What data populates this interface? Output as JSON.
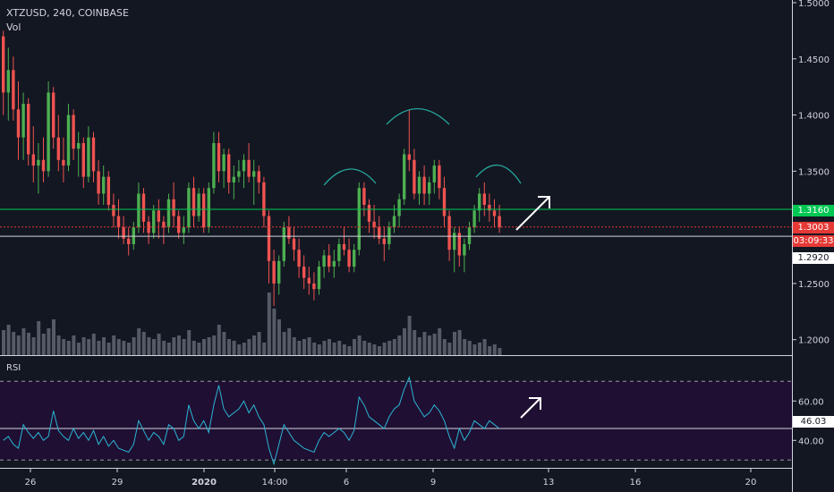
{
  "header": {
    "symbol_line": "XTZUSD, 240, COINBASE",
    "volume_label": "Vol"
  },
  "rsi_label": "RSI",
  "price_axis": {
    "ticks": [
      "1.5000",
      "1.4500",
      "1.4000",
      "1.3500",
      "1.2500",
      "1.2000"
    ]
  },
  "rsi_axis": {
    "ticks": [
      "60.00",
      "40.00"
    ]
  },
  "time_axis": {
    "ticks": [
      "26",
      "29",
      "2020",
      "14:00",
      "6",
      "9",
      "13",
      "16",
      "20"
    ]
  },
  "price_tags": {
    "green_line": "1.3160",
    "last_price": "1.3003",
    "countdown": "03:09:33",
    "gray_line": "1.2920",
    "rsi_value": "46.03"
  },
  "colors": {
    "background": "#131722",
    "up": "#26a69a",
    "up_candle": "#4caf50",
    "down_candle": "#ef5350",
    "green_line": "#00c853",
    "last_price": "#e53935",
    "rsi_line": "#2bb5d4",
    "rsi_band": "#1f0f33",
    "volume": "#555a66"
  },
  "chart_data": {
    "type": "candlestick",
    "candles": [
      [
        1.47,
        1.475,
        1.4,
        1.42
      ],
      [
        1.42,
        1.46,
        1.395,
        1.44
      ],
      [
        1.44,
        1.452,
        1.395,
        1.405
      ],
      [
        1.405,
        1.43,
        1.36,
        1.38
      ],
      [
        1.38,
        1.42,
        1.36,
        1.41
      ],
      [
        1.41,
        1.415,
        1.355,
        1.365
      ],
      [
        1.365,
        1.39,
        1.34,
        1.355
      ],
      [
        1.355,
        1.375,
        1.33,
        1.36
      ],
      [
        1.36,
        1.38,
        1.34,
        1.35
      ],
      [
        1.35,
        1.43,
        1.345,
        1.42
      ],
      [
        1.42,
        1.425,
        1.37,
        1.38
      ],
      [
        1.38,
        1.4,
        1.35,
        1.36
      ],
      [
        1.36,
        1.38,
        1.34,
        1.355
      ],
      [
        1.355,
        1.41,
        1.35,
        1.4
      ],
      [
        1.4,
        1.405,
        1.36,
        1.37
      ],
      [
        1.37,
        1.385,
        1.345,
        1.375
      ],
      [
        1.375,
        1.38,
        1.335,
        1.345
      ],
      [
        1.345,
        1.39,
        1.34,
        1.38
      ],
      [
        1.38,
        1.385,
        1.34,
        1.35
      ],
      [
        1.35,
        1.36,
        1.32,
        1.33
      ],
      [
        1.33,
        1.355,
        1.32,
        1.345
      ],
      [
        1.345,
        1.35,
        1.315,
        1.32
      ],
      [
        1.32,
        1.33,
        1.3,
        1.31
      ],
      [
        1.31,
        1.325,
        1.29,
        1.3
      ],
      [
        1.3,
        1.31,
        1.285,
        1.29
      ],
      [
        1.29,
        1.3,
        1.275,
        1.285
      ],
      [
        1.285,
        1.305,
        1.28,
        1.3
      ],
      [
        1.3,
        1.34,
        1.295,
        1.33
      ],
      [
        1.33,
        1.335,
        1.295,
        1.305
      ],
      [
        1.305,
        1.31,
        1.285,
        1.295
      ],
      [
        1.295,
        1.32,
        1.29,
        1.315
      ],
      [
        1.315,
        1.325,
        1.29,
        1.305
      ],
      [
        1.305,
        1.31,
        1.285,
        1.3
      ],
      [
        1.3,
        1.33,
        1.295,
        1.325
      ],
      [
        1.325,
        1.34,
        1.3,
        1.31
      ],
      [
        1.31,
        1.315,
        1.29,
        1.295
      ],
      [
        1.295,
        1.31,
        1.285,
        1.3
      ],
      [
        1.3,
        1.34,
        1.295,
        1.335
      ],
      [
        1.335,
        1.345,
        1.3,
        1.31
      ],
      [
        1.31,
        1.335,
        1.305,
        1.33
      ],
      [
        1.33,
        1.335,
        1.295,
        1.3
      ],
      [
        1.3,
        1.34,
        1.295,
        1.335
      ],
      [
        1.335,
        1.385,
        1.33,
        1.375
      ],
      [
        1.375,
        1.385,
        1.34,
        1.35
      ],
      [
        1.35,
        1.37,
        1.335,
        1.365
      ],
      [
        1.365,
        1.37,
        1.33,
        1.34
      ],
      [
        1.34,
        1.355,
        1.325,
        1.345
      ],
      [
        1.345,
        1.36,
        1.34,
        1.35
      ],
      [
        1.35,
        1.365,
        1.335,
        1.36
      ],
      [
        1.36,
        1.375,
        1.34,
        1.345
      ],
      [
        1.345,
        1.36,
        1.32,
        1.35
      ],
      [
        1.35,
        1.355,
        1.33,
        1.34
      ],
      [
        1.34,
        1.345,
        1.3,
        1.31
      ],
      [
        1.31,
        1.315,
        1.25,
        1.27
      ],
      [
        1.27,
        1.28,
        1.23,
        1.25
      ],
      [
        1.25,
        1.275,
        1.24,
        1.27
      ],
      [
        1.27,
        1.305,
        1.265,
        1.3
      ],
      [
        1.3,
        1.31,
        1.285,
        1.29
      ],
      [
        1.29,
        1.3,
        1.27,
        1.28
      ],
      [
        1.28,
        1.29,
        1.255,
        1.265
      ],
      [
        1.265,
        1.275,
        1.245,
        1.255
      ],
      [
        1.255,
        1.265,
        1.24,
        1.25
      ],
      [
        1.25,
        1.26,
        1.235,
        1.245
      ],
      [
        1.245,
        1.27,
        1.24,
        1.265
      ],
      [
        1.265,
        1.28,
        1.255,
        1.275
      ],
      [
        1.275,
        1.285,
        1.26,
        1.265
      ],
      [
        1.265,
        1.28,
        1.255,
        1.27
      ],
      [
        1.27,
        1.29,
        1.265,
        1.285
      ],
      [
        1.285,
        1.3,
        1.275,
        1.28
      ],
      [
        1.28,
        1.29,
        1.26,
        1.265
      ],
      [
        1.265,
        1.285,
        1.26,
        1.28
      ],
      [
        1.28,
        1.34,
        1.275,
        1.335
      ],
      [
        1.335,
        1.34,
        1.31,
        1.32
      ],
      [
        1.32,
        1.325,
        1.295,
        1.305
      ],
      [
        1.305,
        1.32,
        1.29,
        1.3
      ],
      [
        1.3,
        1.31,
        1.285,
        1.29
      ],
      [
        1.29,
        1.3,
        1.27,
        1.285
      ],
      [
        1.285,
        1.305,
        1.28,
        1.3
      ],
      [
        1.3,
        1.32,
        1.295,
        1.31
      ],
      [
        1.31,
        1.33,
        1.3,
        1.325
      ],
      [
        1.325,
        1.37,
        1.32,
        1.365
      ],
      [
        1.365,
        1.405,
        1.35,
        1.36
      ],
      [
        1.36,
        1.37,
        1.325,
        1.33
      ],
      [
        1.33,
        1.35,
        1.32,
        1.345
      ],
      [
        1.345,
        1.355,
        1.32,
        1.33
      ],
      [
        1.33,
        1.345,
        1.32,
        1.34
      ],
      [
        1.34,
        1.36,
        1.33,
        1.355
      ],
      [
        1.355,
        1.36,
        1.325,
        1.335
      ],
      [
        1.335,
        1.345,
        1.3,
        1.31
      ],
      [
        1.31,
        1.315,
        1.27,
        1.28
      ],
      [
        1.28,
        1.3,
        1.26,
        1.295
      ],
      [
        1.295,
        1.3,
        1.265,
        1.275
      ],
      [
        1.275,
        1.29,
        1.26,
        1.285
      ],
      [
        1.285,
        1.305,
        1.28,
        1.3
      ],
      [
        1.3,
        1.32,
        1.295,
        1.315
      ],
      [
        1.315,
        1.335,
        1.305,
        1.33
      ],
      [
        1.33,
        1.34,
        1.31,
        1.32
      ],
      [
        1.32,
        1.33,
        1.305,
        1.315
      ],
      [
        1.315,
        1.325,
        1.3,
        1.31
      ],
      [
        1.31,
        1.32,
        1.295,
        1.3
      ]
    ],
    "volumes": [
      28,
      34,
      26,
      22,
      30,
      25,
      20,
      38,
      24,
      30,
      40,
      22,
      18,
      16,
      22,
      14,
      20,
      18,
      24,
      16,
      20,
      14,
      22,
      18,
      16,
      14,
      20,
      30,
      26,
      20,
      18,
      24,
      16,
      14,
      20,
      22,
      18,
      28,
      16,
      14,
      18,
      20,
      22,
      34,
      26,
      18,
      16,
      12,
      14,
      18,
      22,
      26,
      14,
      70,
      52,
      40,
      26,
      30,
      20,
      16,
      18,
      20,
      14,
      12,
      16,
      18,
      14,
      16,
      12,
      10,
      18,
      22,
      16,
      14,
      12,
      10,
      14,
      16,
      18,
      22,
      30,
      44,
      28,
      20,
      26,
      22,
      24,
      30,
      18,
      14,
      26,
      28,
      18,
      16,
      12,
      14,
      18,
      10,
      12,
      8
    ],
    "rsi": [
      40,
      42,
      38,
      36,
      48,
      44,
      41,
      44,
      40,
      42,
      55,
      45,
      42,
      40,
      46,
      41,
      44,
      40,
      45,
      38,
      42,
      37,
      40,
      36,
      35,
      34,
      38,
      50,
      45,
      40,
      44,
      42,
      38,
      48,
      46,
      40,
      42,
      58,
      50,
      46,
      50,
      44,
      58,
      68,
      56,
      52,
      54,
      56,
      60,
      54,
      58,
      52,
      48,
      36,
      28,
      38,
      48,
      44,
      40,
      38,
      36,
      35,
      34,
      40,
      44,
      42,
      44,
      46,
      44,
      40,
      45,
      62,
      58,
      52,
      50,
      48,
      46,
      52,
      56,
      58,
      66,
      72,
      60,
      56,
      52,
      54,
      58,
      55,
      50,
      42,
      36,
      46,
      40,
      44,
      50,
      48,
      46,
      50,
      48,
      46
    ],
    "price_ylim": [
      1.1862,
      1.5
    ],
    "rsi_ylim": [
      26.5,
      77.4
    ],
    "rsi_band": [
      30,
      70
    ],
    "horizontal_lines": {
      "green": 1.316,
      "last": 1.3003,
      "gray": 1.292
    },
    "annotations": [
      "arcs-over-three-peaks",
      "arrow-up-right",
      "arrow-up-right"
    ]
  }
}
